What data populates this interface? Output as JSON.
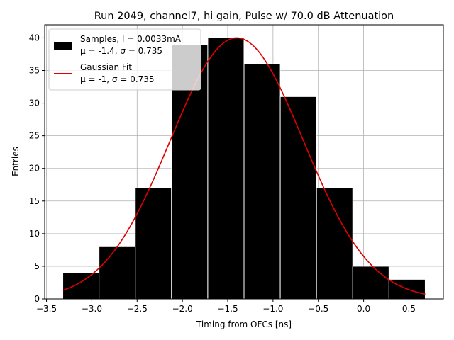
{
  "chart_data": {
    "type": "bar",
    "title": "Run 2049, channel7, hi gain, Pulse w/ 70.0 dB Attenuation",
    "xlabel": "Timing from OFCs [ns]",
    "ylabel": "Entries",
    "xlim": [
      -3.52,
      0.88
    ],
    "ylim": [
      0,
      42
    ],
    "xticks": [
      -3.5,
      -3.0,
      -2.5,
      -2.0,
      -1.5,
      -1.0,
      -0.5,
      0.0,
      0.5
    ],
    "xtick_labels": [
      "−3.5",
      "−3.0",
      "−2.5",
      "−2.0",
      "−1.5",
      "−1.0",
      "−0.5",
      "0.0",
      "0.5"
    ],
    "yticks": [
      0,
      5,
      10,
      15,
      20,
      25,
      30,
      35,
      40
    ],
    "ytick_labels": [
      "0",
      "5",
      "10",
      "15",
      "20",
      "25",
      "30",
      "35",
      "40"
    ],
    "grid": true,
    "histogram": {
      "bin_edges": [
        -3.32,
        -2.92,
        -2.52,
        -2.12,
        -1.72,
        -1.32,
        -0.92,
        -0.52,
        -0.12,
        0.28,
        0.68
      ],
      "counts": [
        4,
        8,
        17,
        39,
        40,
        36,
        31,
        17,
        5,
        3
      ],
      "color": "#000000",
      "edgecolor": "#ffffff"
    },
    "fit": {
      "mu": -1.4,
      "sigma": 0.735,
      "amplitude": 40,
      "x_range": [
        -3.32,
        0.68
      ],
      "color": "#e00000"
    },
    "legend": {
      "position": "top-left",
      "entries": [
        {
          "line1": "Samples, I = 0.0033mA",
          "line2": "μ = -1.4, σ = 0.735",
          "marker": "patch",
          "color": "#000000"
        },
        {
          "line1": "Gaussian Fit",
          "line2": "μ = -1, σ = 0.735",
          "marker": "line",
          "color": "#e00000"
        }
      ]
    }
  }
}
